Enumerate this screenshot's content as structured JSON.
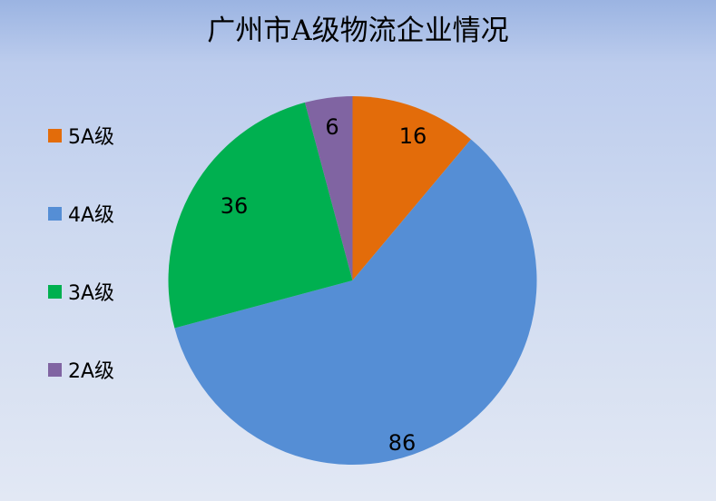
{
  "chart_data": {
    "type": "pie",
    "title": "广州市A级物流企业情况",
    "categories": [
      "5A级",
      "4A级",
      "3A级",
      "2A级"
    ],
    "values": [
      16,
      86,
      36,
      6
    ],
    "colors": [
      "#e36c0a",
      "#558ed5",
      "#00b050",
      "#8064a2"
    ],
    "legend_position": "left",
    "start_angle": "top, clockwise"
  }
}
